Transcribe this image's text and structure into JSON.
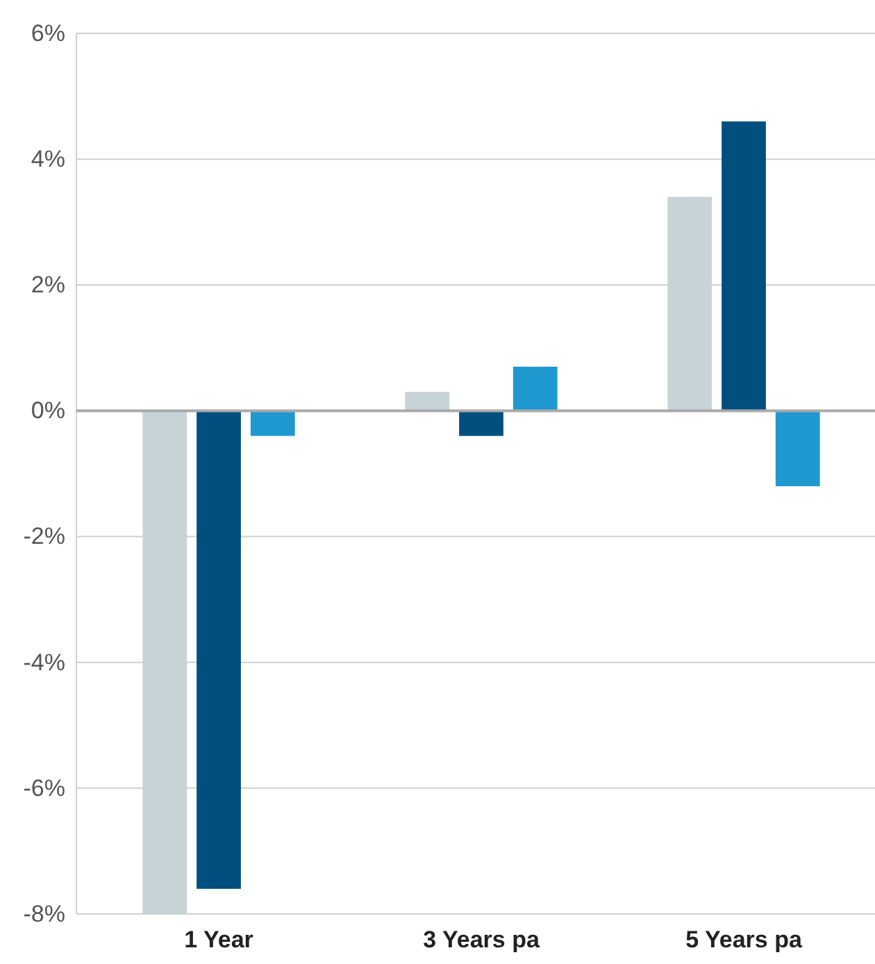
{
  "chart_data": {
    "type": "bar",
    "categories": [
      "1 Year",
      "3 Years pa",
      "5 Years pa"
    ],
    "series": [
      {
        "color": "#c8d3d8",
        "values": [
          -8.0,
          0.3,
          3.4
        ]
      },
      {
        "color": "#004f7f",
        "values": [
          -7.6,
          -0.4,
          4.6
        ]
      },
      {
        "color": "#1f98cf",
        "values": [
          -0.4,
          0.7,
          -1.2
        ]
      }
    ],
    "ylim": [
      -8,
      6
    ],
    "yticks": [
      {
        "value": -8,
        "label": "-8%"
      },
      {
        "value": -6,
        "label": "-6%"
      },
      {
        "value": -4,
        "label": "-4%"
      },
      {
        "value": -2,
        "label": "-2%"
      },
      {
        "value": 0,
        "label": "0%"
      },
      {
        "value": 2,
        "label": "2%"
      },
      {
        "value": 4,
        "label": "4%"
      },
      {
        "value": 6,
        "label": "6%"
      }
    ],
    "grid": "y"
  }
}
